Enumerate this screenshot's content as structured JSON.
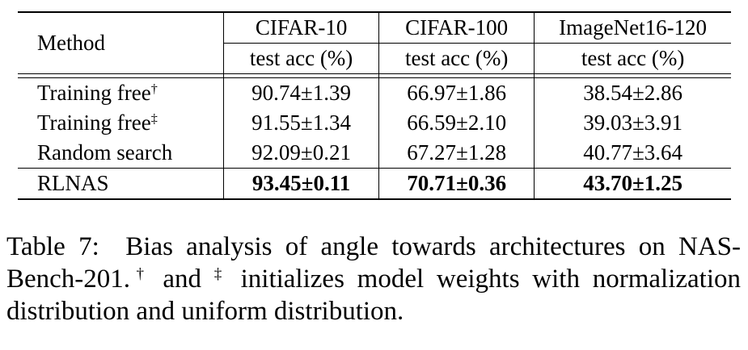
{
  "table": {
    "method_header": "Method",
    "datasets": [
      "CIFAR-10",
      "CIFAR-100",
      "ImageNet16-120"
    ],
    "metric": "test acc (%)",
    "rows": [
      {
        "method": "Training free",
        "mark": "†",
        "values": [
          "90.74±1.39",
          "66.97±1.86",
          "38.54±2.86"
        ],
        "bold": false
      },
      {
        "method": "Training free",
        "mark": "‡",
        "values": [
          "91.55±1.34",
          "66.59±2.10",
          "39.03±3.91"
        ],
        "bold": false
      },
      {
        "method": "Random search",
        "mark": "",
        "values": [
          "92.09±0.21",
          "67.27±1.28",
          "40.77±3.64"
        ],
        "bold": false
      },
      {
        "method": "RLNAS",
        "mark": "",
        "values": [
          "93.45±0.11",
          "70.71±0.36",
          "43.70±1.25"
        ],
        "bold": true
      }
    ]
  },
  "caption": {
    "label": "Table 7:",
    "text_a": "Bias analysis of angle towards architectures on NAS-Bench-201.",
    "mark_a": "†",
    "text_b": " and ",
    "mark_b": "‡",
    "text_c": " initializes model weights with normalization distribution and uniform distribution."
  }
}
